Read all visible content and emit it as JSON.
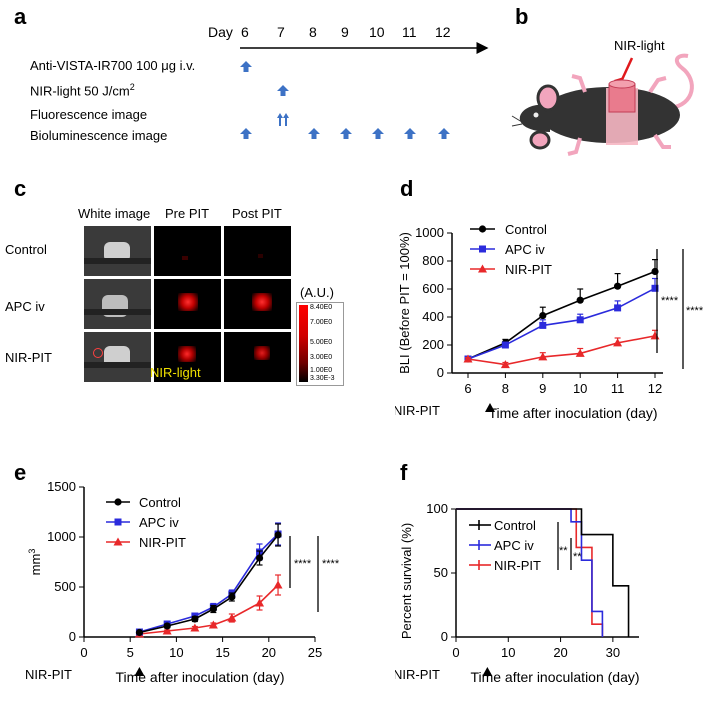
{
  "panel_labels": {
    "a": "a",
    "b": "b",
    "c": "c",
    "d": "d",
    "e": "e",
    "f": "f"
  },
  "panel_a": {
    "day_label": "Day",
    "days": [
      "6",
      "7",
      "8",
      "9",
      "10",
      "11",
      "12"
    ],
    "rows": [
      {
        "label": "Anti-VISTA-IR700 100 μg i.v."
      },
      {
        "label": "NIR-light 50 J/cm",
        "sup": "2"
      },
      {
        "label": "Fluorescence image"
      },
      {
        "label": "Bioluminescence image"
      }
    ]
  },
  "panel_b": {
    "nir_label": "NIR-light"
  },
  "panel_c": {
    "col_headers": [
      "White image",
      "Pre PIT",
      "Post PIT"
    ],
    "row_labels": [
      "Control",
      "APC iv",
      "NIR-PIT"
    ],
    "colorbar_unit": "(A.U.)",
    "colorbar_ticks": [
      "8.40E0",
      "7.00E0",
      "5.00E0",
      "3.00E0",
      "1.00E0",
      "3.30E-3"
    ],
    "nir_overlay": "NIR-light"
  },
  "chart_data": [
    {
      "panel": "d",
      "type": "line",
      "ylabel": "BLI (Before PIT = 100%)",
      "xlabel": "Time after inoculation (day)",
      "x": [
        6,
        8,
        9,
        10,
        11,
        12
      ],
      "xticks": [
        "6",
        "8",
        "9",
        "10",
        "11",
        "12"
      ],
      "ylim": [
        0,
        1000
      ],
      "yticks": [
        "0",
        "200",
        "400",
        "600",
        "800",
        "1000"
      ],
      "series": [
        {
          "name": "Control",
          "color": "#000000",
          "marker": "circle",
          "values": [
            100,
            215,
            410,
            520,
            620,
            725
          ],
          "err": [
            10,
            25,
            60,
            80,
            90,
            85
          ]
        },
        {
          "name": "APC iv",
          "color": "#2b2bdc",
          "marker": "square",
          "values": [
            100,
            200,
            340,
            380,
            465,
            605
          ],
          "err": [
            10,
            20,
            40,
            40,
            50,
            70
          ]
        },
        {
          "name": "NIR-PIT",
          "color": "#e8282a",
          "marker": "triangle",
          "values": [
            100,
            60,
            115,
            140,
            215,
            265
          ],
          "err": [
            10,
            15,
            30,
            35,
            35,
            40
          ]
        }
      ],
      "annotation": "NIR-PIT",
      "significance": [
        "****",
        "****"
      ]
    },
    {
      "panel": "e",
      "type": "line",
      "ylabel": "mm3",
      "xlabel": "Time after inoculation (day)",
      "x": [
        6,
        9,
        12,
        14,
        16,
        19,
        21
      ],
      "xticks": [
        "0",
        "5",
        "10",
        "15",
        "20",
        "25"
      ],
      "xlim": [
        0,
        25
      ],
      "ylim": [
        0,
        1500
      ],
      "yticks": [
        "0",
        "500",
        "1000",
        "1500"
      ],
      "series": [
        {
          "name": "Control",
          "color": "#000000",
          "marker": "circle",
          "values": [
            45,
            110,
            180,
            280,
            400,
            790,
            1020
          ],
          "err": [
            10,
            20,
            25,
            35,
            40,
            70,
            110
          ]
        },
        {
          "name": "APC iv",
          "color": "#2b2bdc",
          "marker": "square",
          "values": [
            50,
            130,
            210,
            300,
            430,
            850,
            1030
          ],
          "err": [
            10,
            20,
            25,
            35,
            40,
            80,
            110
          ]
        },
        {
          "name": "NIR-PIT",
          "color": "#e8282a",
          "marker": "triangle",
          "values": [
            30,
            60,
            90,
            120,
            190,
            340,
            520
          ],
          "err": [
            8,
            10,
            15,
            20,
            40,
            70,
            100
          ]
        }
      ],
      "annotation": "NIR-PIT",
      "significance": [
        "****",
        "****"
      ]
    },
    {
      "panel": "f",
      "type": "line",
      "ylabel": "Percent survival (%)",
      "xlabel": "Time after inoculation (day)",
      "xlim": [
        0,
        35
      ],
      "ylim": [
        0,
        100
      ],
      "xticks": [
        "0",
        "10",
        "20",
        "30"
      ],
      "yticks": [
        "0",
        "50",
        "100"
      ],
      "series": [
        {
          "name": "Control",
          "color": "#000000",
          "steps": [
            [
              0,
              100
            ],
            [
              24,
              100
            ],
            [
              24,
              80
            ],
            [
              30,
              80
            ],
            [
              30,
              40
            ],
            [
              33,
              40
            ],
            [
              33,
              0
            ]
          ]
        },
        {
          "name": "APC iv",
          "color": "#2b2bdc",
          "steps": [
            [
              0,
              100
            ],
            [
              22,
              100
            ],
            [
              22,
              90
            ],
            [
              24,
              90
            ],
            [
              24,
              60
            ],
            [
              26,
              60
            ],
            [
              26,
              20
            ],
            [
              28,
              20
            ],
            [
              28,
              0
            ]
          ]
        },
        {
          "name": "NIR-PIT",
          "color": "#e8282a",
          "steps": [
            [
              0,
              100
            ],
            [
              23,
              100
            ],
            [
              23,
              70
            ],
            [
              26,
              70
            ],
            [
              26,
              10
            ],
            [
              28,
              10
            ],
            [
              28,
              0
            ]
          ]
        }
      ],
      "annotation": "NIR-PIT",
      "significance": [
        "**",
        "**"
      ]
    }
  ]
}
